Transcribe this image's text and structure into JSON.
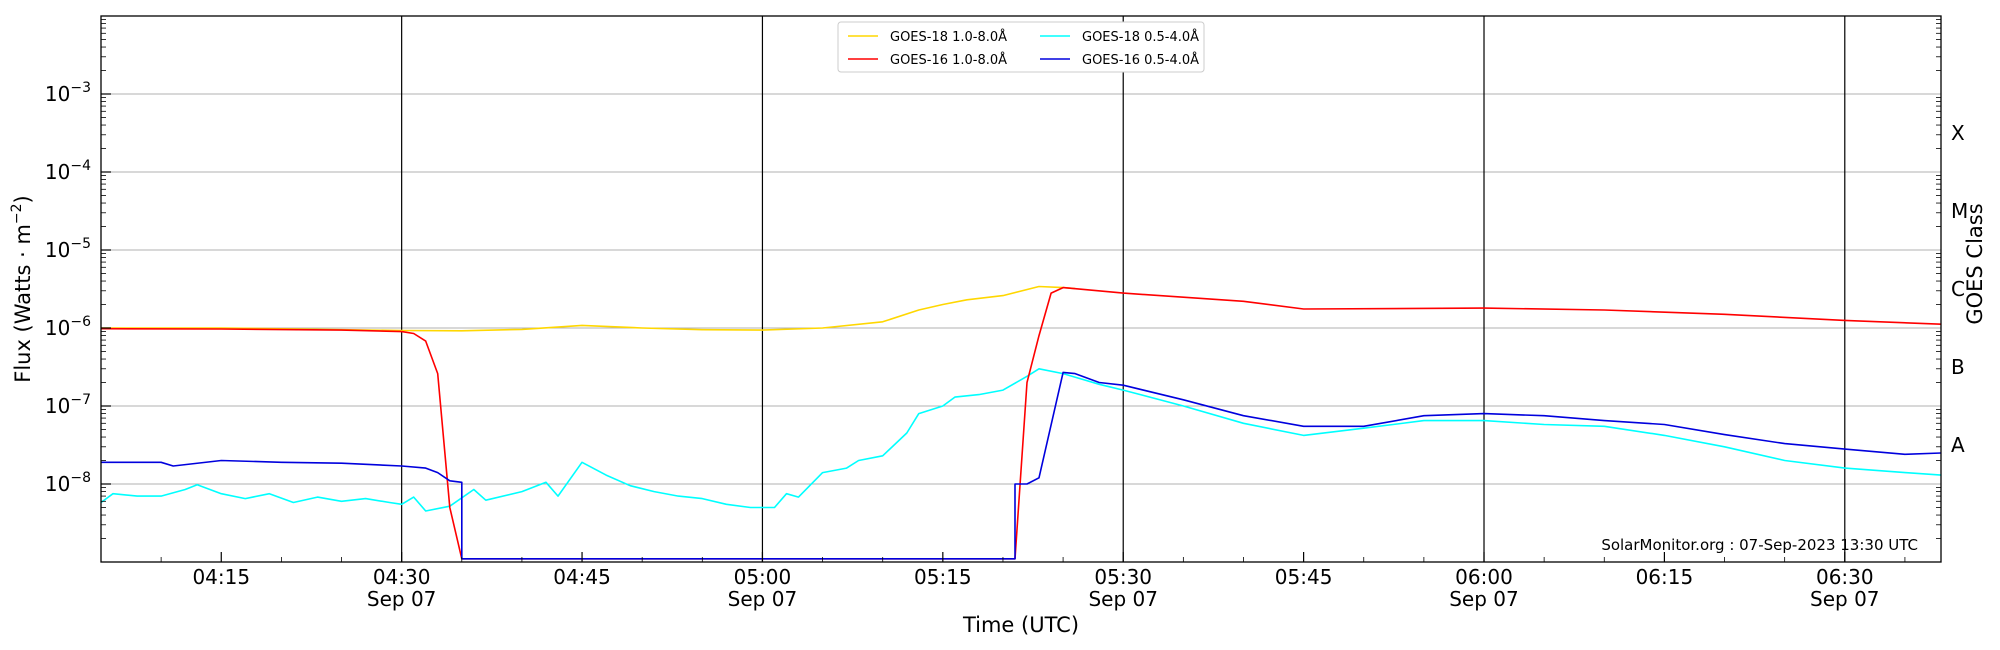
{
  "chart_data": {
    "type": "line",
    "title": "",
    "xlabel": "Time (UTC)",
    "ylabel": "Flux (Watts · m",
    "ylabel_superscript": "−2",
    "ylabel_close": ")",
    "y2label": "GOES Class",
    "ylog": true,
    "ylim": [
      1e-09,
      0.01
    ],
    "xlim": [
      "04:05",
      "06:38"
    ],
    "grid": "horizontal",
    "legend_position": "top-center",
    "credit": "SolarMonitor.org : 07-Sep-2023 13:30 UTC",
    "y_ticks": [
      {
        "value": 1e-08,
        "base": "10",
        "exp": "−8"
      },
      {
        "value": 1e-07,
        "base": "10",
        "exp": "−7"
      },
      {
        "value": 1e-06,
        "base": "10",
        "exp": "−6"
      },
      {
        "value": 1e-05,
        "base": "10",
        "exp": "−5"
      },
      {
        "value": 0.0001,
        "base": "10",
        "exp": "−4"
      },
      {
        "value": 0.001,
        "base": "10",
        "exp": "−3"
      }
    ],
    "x_ticks": [
      {
        "time": "04:15",
        "label": "04:15",
        "date": ""
      },
      {
        "time": "04:30",
        "label": "04:30",
        "date": "Sep 07"
      },
      {
        "time": "04:45",
        "label": "04:45",
        "date": ""
      },
      {
        "time": "05:00",
        "label": "05:00",
        "date": "Sep 07"
      },
      {
        "time": "05:15",
        "label": "05:15",
        "date": ""
      },
      {
        "time": "05:30",
        "label": "05:30",
        "date": "Sep 07"
      },
      {
        "time": "05:45",
        "label": "05:45",
        "date": ""
      },
      {
        "time": "06:00",
        "label": "06:00",
        "date": "Sep 07"
      },
      {
        "time": "06:15",
        "label": "06:15",
        "date": ""
      },
      {
        "time": "06:30",
        "label": "06:30",
        "date": "Sep 07"
      }
    ],
    "vertical_lines": [
      "04:30",
      "05:00",
      "05:30",
      "06:00",
      "06:30"
    ],
    "goes_classes": [
      {
        "label": "A",
        "value": 3.16e-08
      },
      {
        "label": "B",
        "value": 3.16e-07
      },
      {
        "label": "C",
        "value": 3.16e-06
      },
      {
        "label": "M",
        "value": 3.16e-05
      },
      {
        "label": "X",
        "value": 0.000316
      }
    ],
    "series": [
      {
        "name": "GOES-18 1.0-8.0Å",
        "color": "#ffd700",
        "points": [
          [
            "04:05",
            1e-06
          ],
          [
            "04:15",
            1e-06
          ],
          [
            "04:25",
            9.5e-07
          ],
          [
            "04:30",
            9.3e-07
          ],
          [
            "04:35",
            9.2e-07
          ],
          [
            "04:40",
            9.6e-07
          ],
          [
            "04:45",
            1.08e-06
          ],
          [
            "04:50",
            1e-06
          ],
          [
            "04:55",
            9.5e-07
          ],
          [
            "05:00",
            9.4e-07
          ],
          [
            "05:05",
            1e-06
          ],
          [
            "05:10",
            1.2e-06
          ],
          [
            "05:13",
            1.7e-06
          ],
          [
            "05:15",
            2e-06
          ],
          [
            "05:17",
            2.3e-06
          ],
          [
            "05:20",
            2.6e-06
          ],
          [
            "05:23",
            3.4e-06
          ],
          [
            "05:25",
            3.3e-06
          ],
          [
            "05:26",
            3.2e-06
          ]
        ]
      },
      {
        "name": "GOES-18 0.5-4.0Å",
        "color": "#00ffff",
        "points": [
          [
            "04:05",
            5.8e-09
          ],
          [
            "04:06",
            7.5e-09
          ],
          [
            "04:08",
            7e-09
          ],
          [
            "04:10",
            7e-09
          ],
          [
            "04:12",
            8.5e-09
          ],
          [
            "04:13",
            9.8e-09
          ],
          [
            "04:15",
            7.5e-09
          ],
          [
            "04:17",
            6.5e-09
          ],
          [
            "04:19",
            7.5e-09
          ],
          [
            "04:21",
            5.8e-09
          ],
          [
            "04:23",
            6.8e-09
          ],
          [
            "04:25",
            6e-09
          ],
          [
            "04:27",
            6.5e-09
          ],
          [
            "04:29",
            5.8e-09
          ],
          [
            "04:30",
            5.5e-09
          ],
          [
            "04:31",
            6.8e-09
          ],
          [
            "04:32",
            4.5e-09
          ],
          [
            "04:34",
            5.2e-09
          ],
          [
            "04:36",
            8.5e-09
          ],
          [
            "04:37",
            6.2e-09
          ],
          [
            "04:40",
            8e-09
          ],
          [
            "04:42",
            1.05e-08
          ],
          [
            "04:43",
            7e-09
          ],
          [
            "04:45",
            1.9e-08
          ],
          [
            "04:47",
            1.3e-08
          ],
          [
            "04:49",
            9.5e-09
          ],
          [
            "04:51",
            8e-09
          ],
          [
            "04:53",
            7e-09
          ],
          [
            "04:55",
            6.5e-09
          ],
          [
            "04:57",
            5.5e-09
          ],
          [
            "04:59",
            5e-09
          ],
          [
            "05:01",
            5e-09
          ],
          [
            "05:02",
            7.5e-09
          ],
          [
            "05:03",
            6.8e-09
          ],
          [
            "05:05",
            1.4e-08
          ],
          [
            "05:07",
            1.6e-08
          ],
          [
            "05:08",
            2e-08
          ],
          [
            "05:10",
            2.3e-08
          ],
          [
            "05:12",
            4.5e-08
          ],
          [
            "05:13",
            8e-08
          ],
          [
            "05:15",
            1e-07
          ],
          [
            "05:16",
            1.3e-07
          ],
          [
            "05:18",
            1.4e-07
          ],
          [
            "05:20",
            1.6e-07
          ],
          [
            "05:22",
            2.4e-07
          ],
          [
            "05:23",
            3e-07
          ],
          [
            "05:25",
            2.6e-07
          ],
          [
            "05:28",
            1.9e-07
          ],
          [
            "05:30",
            1.6e-07
          ],
          [
            "05:35",
            1e-07
          ],
          [
            "05:40",
            6e-08
          ],
          [
            "05:45",
            4.2e-08
          ],
          [
            "05:50",
            5.2e-08
          ],
          [
            "05:55",
            6.5e-08
          ],
          [
            "06:00",
            6.5e-08
          ],
          [
            "06:05",
            5.8e-08
          ],
          [
            "06:10",
            5.5e-08
          ],
          [
            "06:15",
            4.2e-08
          ],
          [
            "06:20",
            3e-08
          ],
          [
            "06:25",
            2e-08
          ],
          [
            "06:30",
            1.6e-08
          ],
          [
            "06:35",
            1.4e-08
          ],
          [
            "06:38",
            1.3e-08
          ]
        ]
      },
      {
        "name": "GOES-16 1.0-8.0Å",
        "color": "#ff0000",
        "points": [
          [
            "04:05",
            9.8e-07
          ],
          [
            "04:15",
            9.7e-07
          ],
          [
            "04:25",
            9.4e-07
          ],
          [
            "04:30",
            9e-07
          ],
          [
            "04:31",
            8.5e-07
          ],
          [
            "04:32",
            6.8e-07
          ],
          [
            "04:33",
            2.6e-07
          ],
          [
            "04:34",
            5e-09
          ],
          [
            "04:35",
            1.1e-09
          ],
          [
            "05:21",
            1.1e-09
          ],
          [
            "05:22",
            2e-07
          ],
          [
            "05:23",
            8e-07
          ],
          [
            "05:24",
            2.8e-06
          ],
          [
            "05:25",
            3.3e-06
          ],
          [
            "05:30",
            2.8e-06
          ],
          [
            "05:40",
            2.2e-06
          ],
          [
            "05:45",
            1.75e-06
          ],
          [
            "06:00",
            1.8e-06
          ],
          [
            "06:10",
            1.7e-06
          ],
          [
            "06:20",
            1.5e-06
          ],
          [
            "06:30",
            1.25e-06
          ],
          [
            "06:38",
            1.12e-06
          ]
        ]
      },
      {
        "name": "GOES-16 0.5-4.0Å",
        "color": "#0000dd",
        "points": [
          [
            "04:05",
            1.9e-08
          ],
          [
            "04:10",
            1.9e-08
          ],
          [
            "04:11",
            1.7e-08
          ],
          [
            "04:15",
            2e-08
          ],
          [
            "04:20",
            1.9e-08
          ],
          [
            "04:25",
            1.85e-08
          ],
          [
            "04:30",
            1.7e-08
          ],
          [
            "04:32",
            1.6e-08
          ],
          [
            "04:33",
            1.4e-08
          ],
          [
            "04:34",
            1.1e-08
          ],
          [
            "04:35",
            1.05e-08
          ],
          [
            "04:35",
            1.1e-09
          ],
          [
            "05:21",
            1.1e-09
          ],
          [
            "05:21",
            1e-08
          ],
          [
            "05:22",
            1e-08
          ],
          [
            "05:23",
            1.2e-08
          ],
          [
            "05:25",
            2.7e-07
          ],
          [
            "05:26",
            2.6e-07
          ],
          [
            "05:28",
            2e-07
          ],
          [
            "05:30",
            1.85e-07
          ],
          [
            "05:35",
            1.2e-07
          ],
          [
            "05:40",
            7.5e-08
          ],
          [
            "05:45",
            5.5e-08
          ],
          [
            "05:50",
            5.5e-08
          ],
          [
            "05:55",
            7.5e-08
          ],
          [
            "06:00",
            8e-08
          ],
          [
            "06:05",
            7.5e-08
          ],
          [
            "06:10",
            6.5e-08
          ],
          [
            "06:15",
            5.8e-08
          ],
          [
            "06:20",
            4.3e-08
          ],
          [
            "06:25",
            3.3e-08
          ],
          [
            "06:30",
            2.8e-08
          ],
          [
            "06:35",
            2.4e-08
          ],
          [
            "06:38",
            2.5e-08
          ]
        ]
      }
    ],
    "legend_order": [
      0,
      1,
      2,
      3
    ]
  }
}
